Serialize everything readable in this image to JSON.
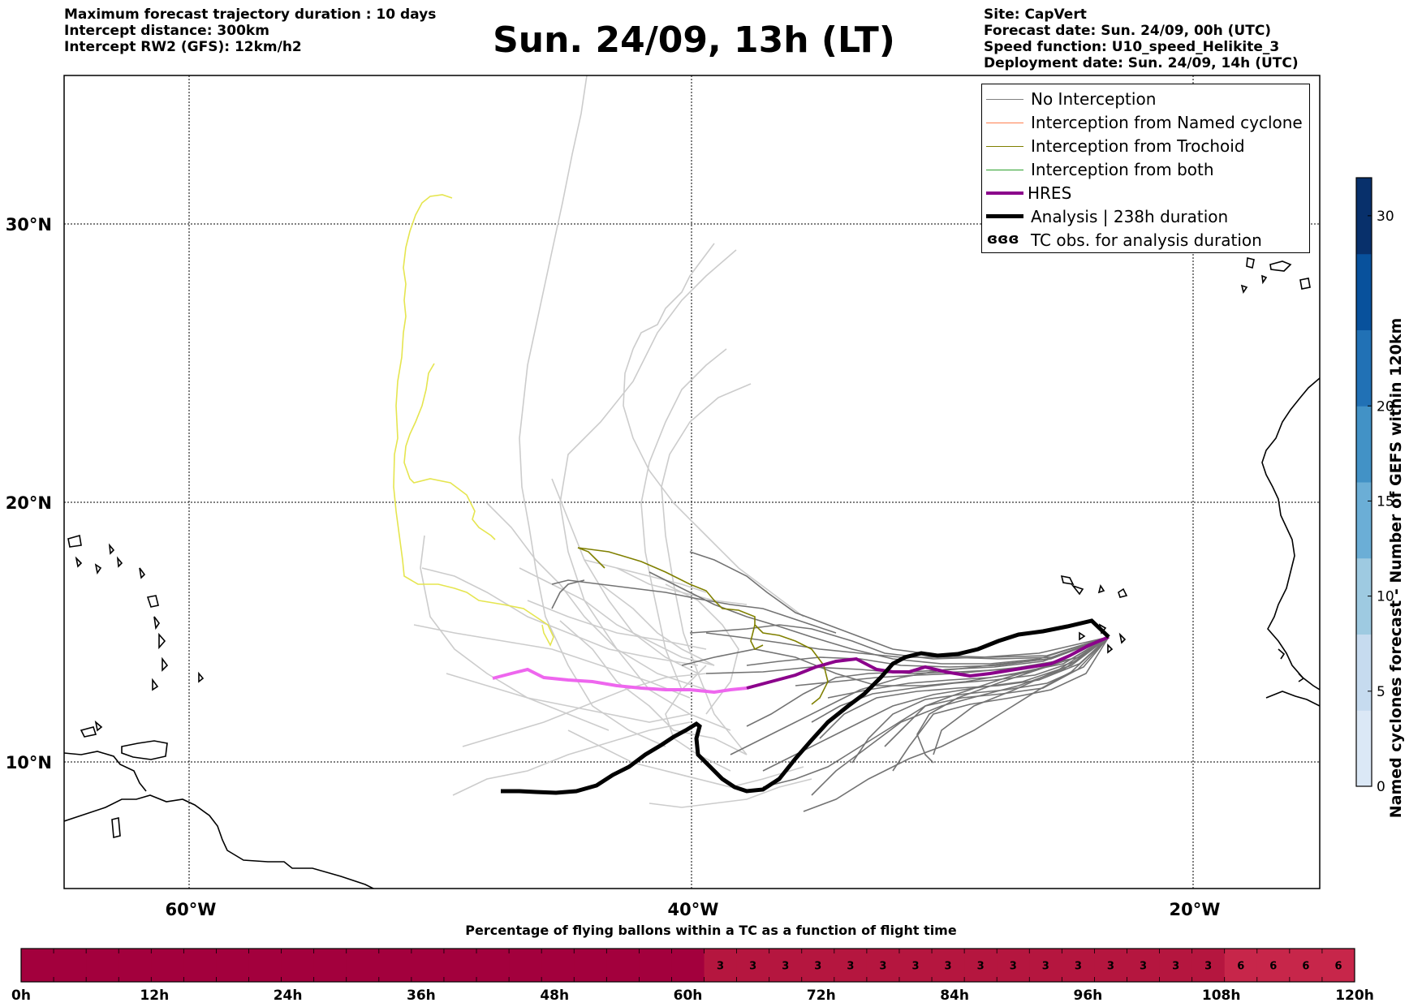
{
  "header": {
    "title": "Sun. 24/09, 13h (LT)",
    "left_info": [
      "Maximum forecast trajectory duration : 10 days",
      "Intercept distance: 300km",
      "Intercept RW2 (GFS):  12km/h2"
    ],
    "right_info": [
      "Site: CapVert",
      "Forecast date: Sun. 24/09, 00h (UTC)",
      "Speed function: U10_speed_Helikite_3",
      "Deployment date: Sun. 24/09, 14h (UTC)"
    ]
  },
  "map": {
    "lat_labels": [
      "30°N",
      "20°N",
      "10°N"
    ],
    "lon_labels": [
      "60°W",
      "40°W",
      "20°W"
    ],
    "extent": {
      "lon_min": -65,
      "lon_max": -15,
      "lat_min": 5.4,
      "lat_max": 34.7
    }
  },
  "legend": {
    "items": [
      {
        "label": "No Interception",
        "color": "#808080"
      },
      {
        "label": "Interception from Named cyclone",
        "color": "#ff7f50"
      },
      {
        "label": "Interception from Trochoid",
        "color": "#808000"
      },
      {
        "label": "Interception from both",
        "color": "#2ca02c"
      },
      {
        "label": "HRES",
        "color": "#8b008b"
      },
      {
        "label": "Analysis | 238h duration",
        "color": "#000000"
      },
      {
        "label": "TC obs. for analysis duration",
        "color": "#000000",
        "symbol": "ɞɞɞ"
      }
    ]
  },
  "colorbar_right": {
    "title": "Named cyclones forecast - Number of GEFS within 120km",
    "ticks": [
      "0",
      "5",
      "10",
      "15",
      "20",
      "30"
    ],
    "range": [
      0,
      32
    ],
    "colors": [
      "#dbe8f6",
      "#c6dbef",
      "#9ecae1",
      "#6baed6",
      "#4292c6",
      "#2171b5",
      "#08519c",
      "#08306b"
    ]
  },
  "bottom_bar": {
    "title": "Percentage of flying ballons within a TC as a function of flight time",
    "tick_labels": [
      "0h",
      "12h",
      "24h",
      "36h",
      "48h",
      "60h",
      "72h",
      "84h",
      "96h",
      "108h",
      "120h"
    ],
    "cell_values": [
      "",
      "",
      "",
      "",
      "",
      "",
      "",
      "",
      "",
      "",
      "",
      "",
      "",
      "",
      "",
      "",
      "",
      "",
      "",
      "",
      "",
      "3",
      "3",
      "3",
      "3",
      "3",
      "3",
      "3",
      "3",
      "3",
      "3",
      "3",
      "3",
      "3",
      "3",
      "3",
      "3",
      "6",
      "6",
      "6",
      "6"
    ],
    "colors": {
      "zero": "#a3003d",
      "three": "#b5163f",
      "six": "#c7264a"
    }
  }
}
